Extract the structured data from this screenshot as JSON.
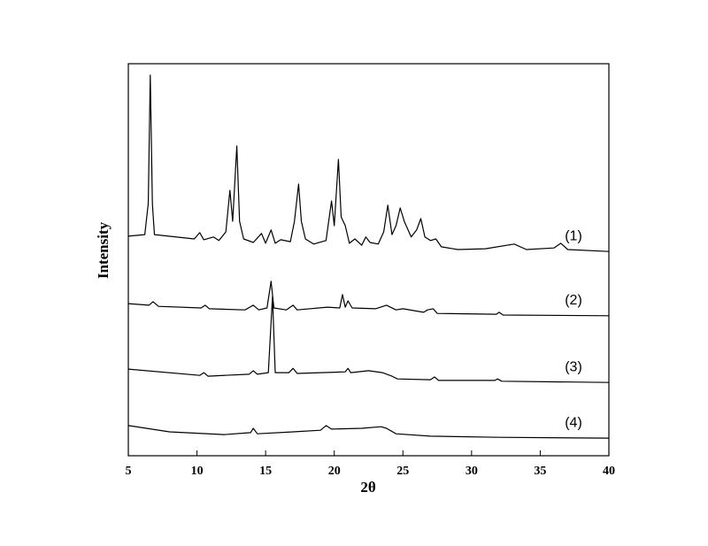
{
  "chart_data": {
    "type": "line",
    "xlabel": "2θ",
    "ylabel": "Intensity",
    "xlim": [
      5,
      40
    ],
    "xticks": [
      5,
      10,
      15,
      20,
      25,
      30,
      35,
      40
    ],
    "ylim": [
      0,
      100
    ],
    "series": [
      {
        "name": "(1)",
        "color": "#000000",
        "x": [
          5,
          6.2,
          6.45,
          6.6,
          6.75,
          6.9,
          9.8,
          10.2,
          10.5,
          11.2,
          11.6,
          12.1,
          12.4,
          12.6,
          12.9,
          13.1,
          13.4,
          14.1,
          14.7,
          15.0,
          15.4,
          15.7,
          16.1,
          16.8,
          17.1,
          17.4,
          17.6,
          17.9,
          18.5,
          19.4,
          19.8,
          20.0,
          20.3,
          20.5,
          20.8,
          21.1,
          21.5,
          22.0,
          22.3,
          22.6,
          23.2,
          23.6,
          23.9,
          24.2,
          24.5,
          24.8,
          25.1,
          25.6,
          26.0,
          26.3,
          26.6,
          27.0,
          27.4,
          27.8,
          29.0,
          31.0,
          33.1,
          34.0,
          36.0,
          36.5,
          37.0,
          40
        ],
        "values": [
          56.0,
          56.4,
          64.3,
          97.1,
          64.3,
          56.4,
          55.3,
          56.9,
          55.1,
          55.8,
          54.9,
          57.1,
          67.7,
          59.8,
          79.0,
          59.8,
          55.3,
          54.4,
          56.7,
          54.2,
          57.6,
          54.2,
          55.1,
          54.6,
          59.8,
          69.3,
          59.8,
          55.3,
          54.0,
          54.9,
          65.0,
          58.7,
          75.6,
          60.9,
          58.7,
          54.2,
          55.3,
          53.7,
          55.8,
          54.4,
          54.0,
          57.1,
          63.9,
          56.4,
          58.7,
          63.2,
          59.8,
          55.8,
          57.6,
          60.5,
          55.8,
          54.9,
          55.3,
          53.3,
          52.6,
          52.8,
          54.0,
          52.6,
          53.0,
          54.2,
          52.6,
          52.1
        ]
      },
      {
        "name": "(2)",
        "color": "#000000",
        "x": [
          5,
          6.5,
          6.8,
          7.2,
          10.3,
          10.6,
          10.9,
          13.5,
          14.1,
          14.5,
          15.1,
          15.4,
          15.6,
          16.5,
          17.0,
          17.3,
          19.5,
          20.4,
          20.6,
          20.8,
          21.0,
          21.3,
          23.0,
          23.8,
          24.5,
          25.0,
          26.5,
          26.8,
          27.2,
          27.5,
          31.8,
          32.0,
          32.3,
          40
        ],
        "values": [
          38.8,
          38.4,
          39.3,
          38.1,
          37.7,
          38.4,
          37.5,
          37.2,
          38.4,
          37.2,
          37.7,
          44.5,
          37.7,
          37.2,
          38.4,
          37.2,
          37.9,
          37.7,
          41.1,
          37.9,
          39.5,
          37.7,
          37.5,
          38.4,
          37.2,
          37.5,
          36.6,
          37.2,
          37.5,
          36.3,
          36.1,
          36.6,
          35.9,
          35.7
        ]
      },
      {
        "name": "(3)",
        "color": "#000000",
        "x": [
          5,
          10.2,
          10.5,
          10.8,
          13.8,
          14.1,
          14.4,
          15.2,
          15.5,
          15.7,
          16.7,
          17.0,
          17.3,
          20.8,
          21.0,
          21.2,
          22.5,
          23.5,
          24.2,
          24.6,
          27.0,
          27.3,
          27.6,
          31.7,
          31.9,
          32.2,
          40
        ],
        "values": [
          22.1,
          20.5,
          21.2,
          20.3,
          20.8,
          21.7,
          20.8,
          21.2,
          40.6,
          21.2,
          21.2,
          22.3,
          21.0,
          21.4,
          22.3,
          21.2,
          21.7,
          21.2,
          20.3,
          19.6,
          19.4,
          20.1,
          19.2,
          19.2,
          19.6,
          19.0,
          18.7
        ]
      },
      {
        "name": "(4)",
        "color": "#000000",
        "x": [
          5,
          8,
          12,
          13.9,
          14.1,
          14.4,
          17,
          19,
          19.4,
          19.8,
          22,
          23.4,
          23.8,
          24.5,
          27,
          32,
          40
        ],
        "values": [
          7.7,
          6.1,
          5.4,
          5.9,
          7.0,
          5.6,
          6.1,
          6.5,
          7.7,
          6.8,
          7.0,
          7.4,
          7.0,
          5.6,
          5.0,
          4.7,
          4.5
        ]
      }
    ]
  }
}
